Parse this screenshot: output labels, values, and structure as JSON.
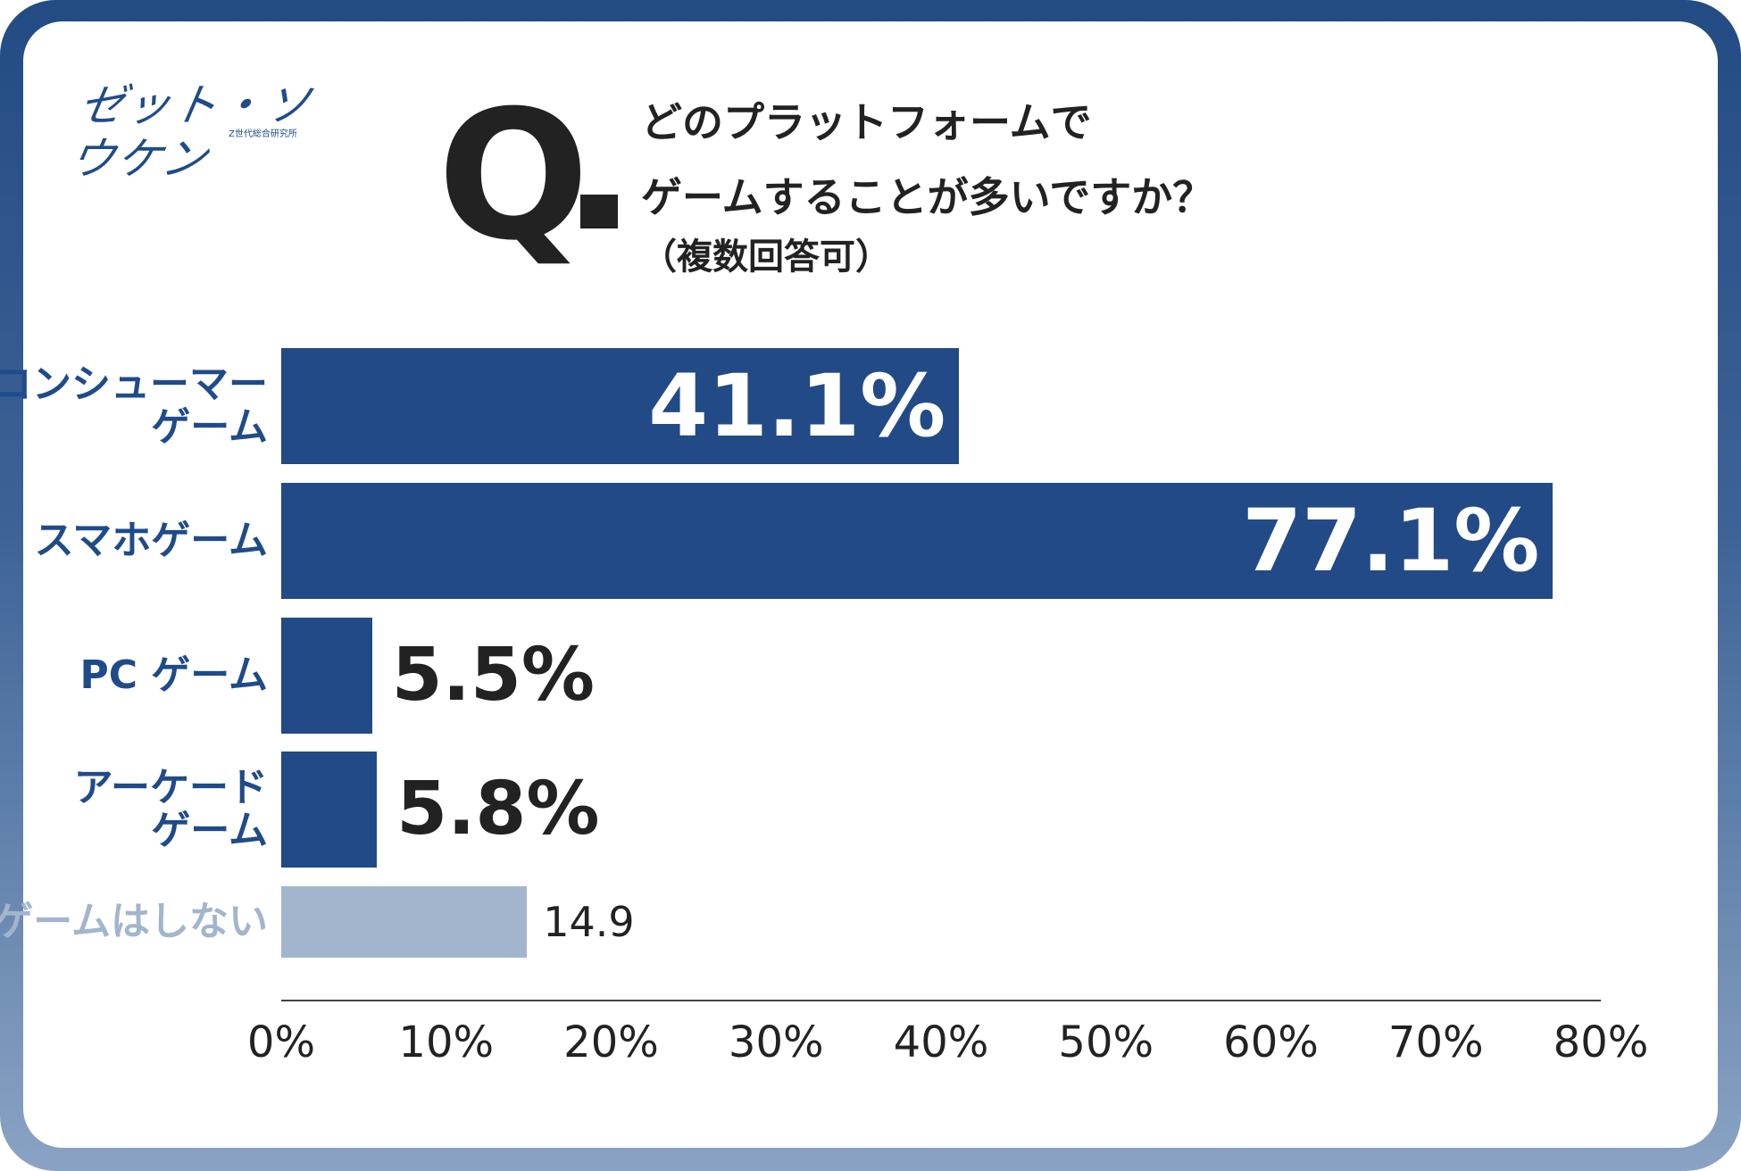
{
  "logo": {
    "text": "ゼット・ソウケン",
    "subtitle": "Z世代総合研究所"
  },
  "question": {
    "mark": "Q",
    "line1": "どのプラットフォームで",
    "line2": "ゲームすることが多いですか？",
    "note": "（複数回答可）"
  },
  "colors": {
    "bar": "#224a86",
    "bar_muted": "#a2b5cd",
    "frame": "#234b84"
  },
  "chart_data": {
    "type": "bar",
    "orientation": "horizontal",
    "title": "",
    "categories": [
      "コンシューマー\nゲーム",
      "スマホゲーム",
      "PC ゲーム",
      "アーケード\nゲーム",
      "ゲームはしない"
    ],
    "values": [
      41.1,
      77.1,
      5.5,
      5.8,
      14.9
    ],
    "value_labels": [
      "41.1%",
      "77.1%",
      "5.5%",
      "5.8%",
      "14.9"
    ],
    "xlim": [
      0,
      80
    ],
    "xticks": [
      "0%",
      "10%",
      "20%",
      "30%",
      "40%",
      "50%",
      "60%",
      "70%",
      "80%"
    ],
    "xlabel": "",
    "ylabel": "",
    "grid": false
  }
}
